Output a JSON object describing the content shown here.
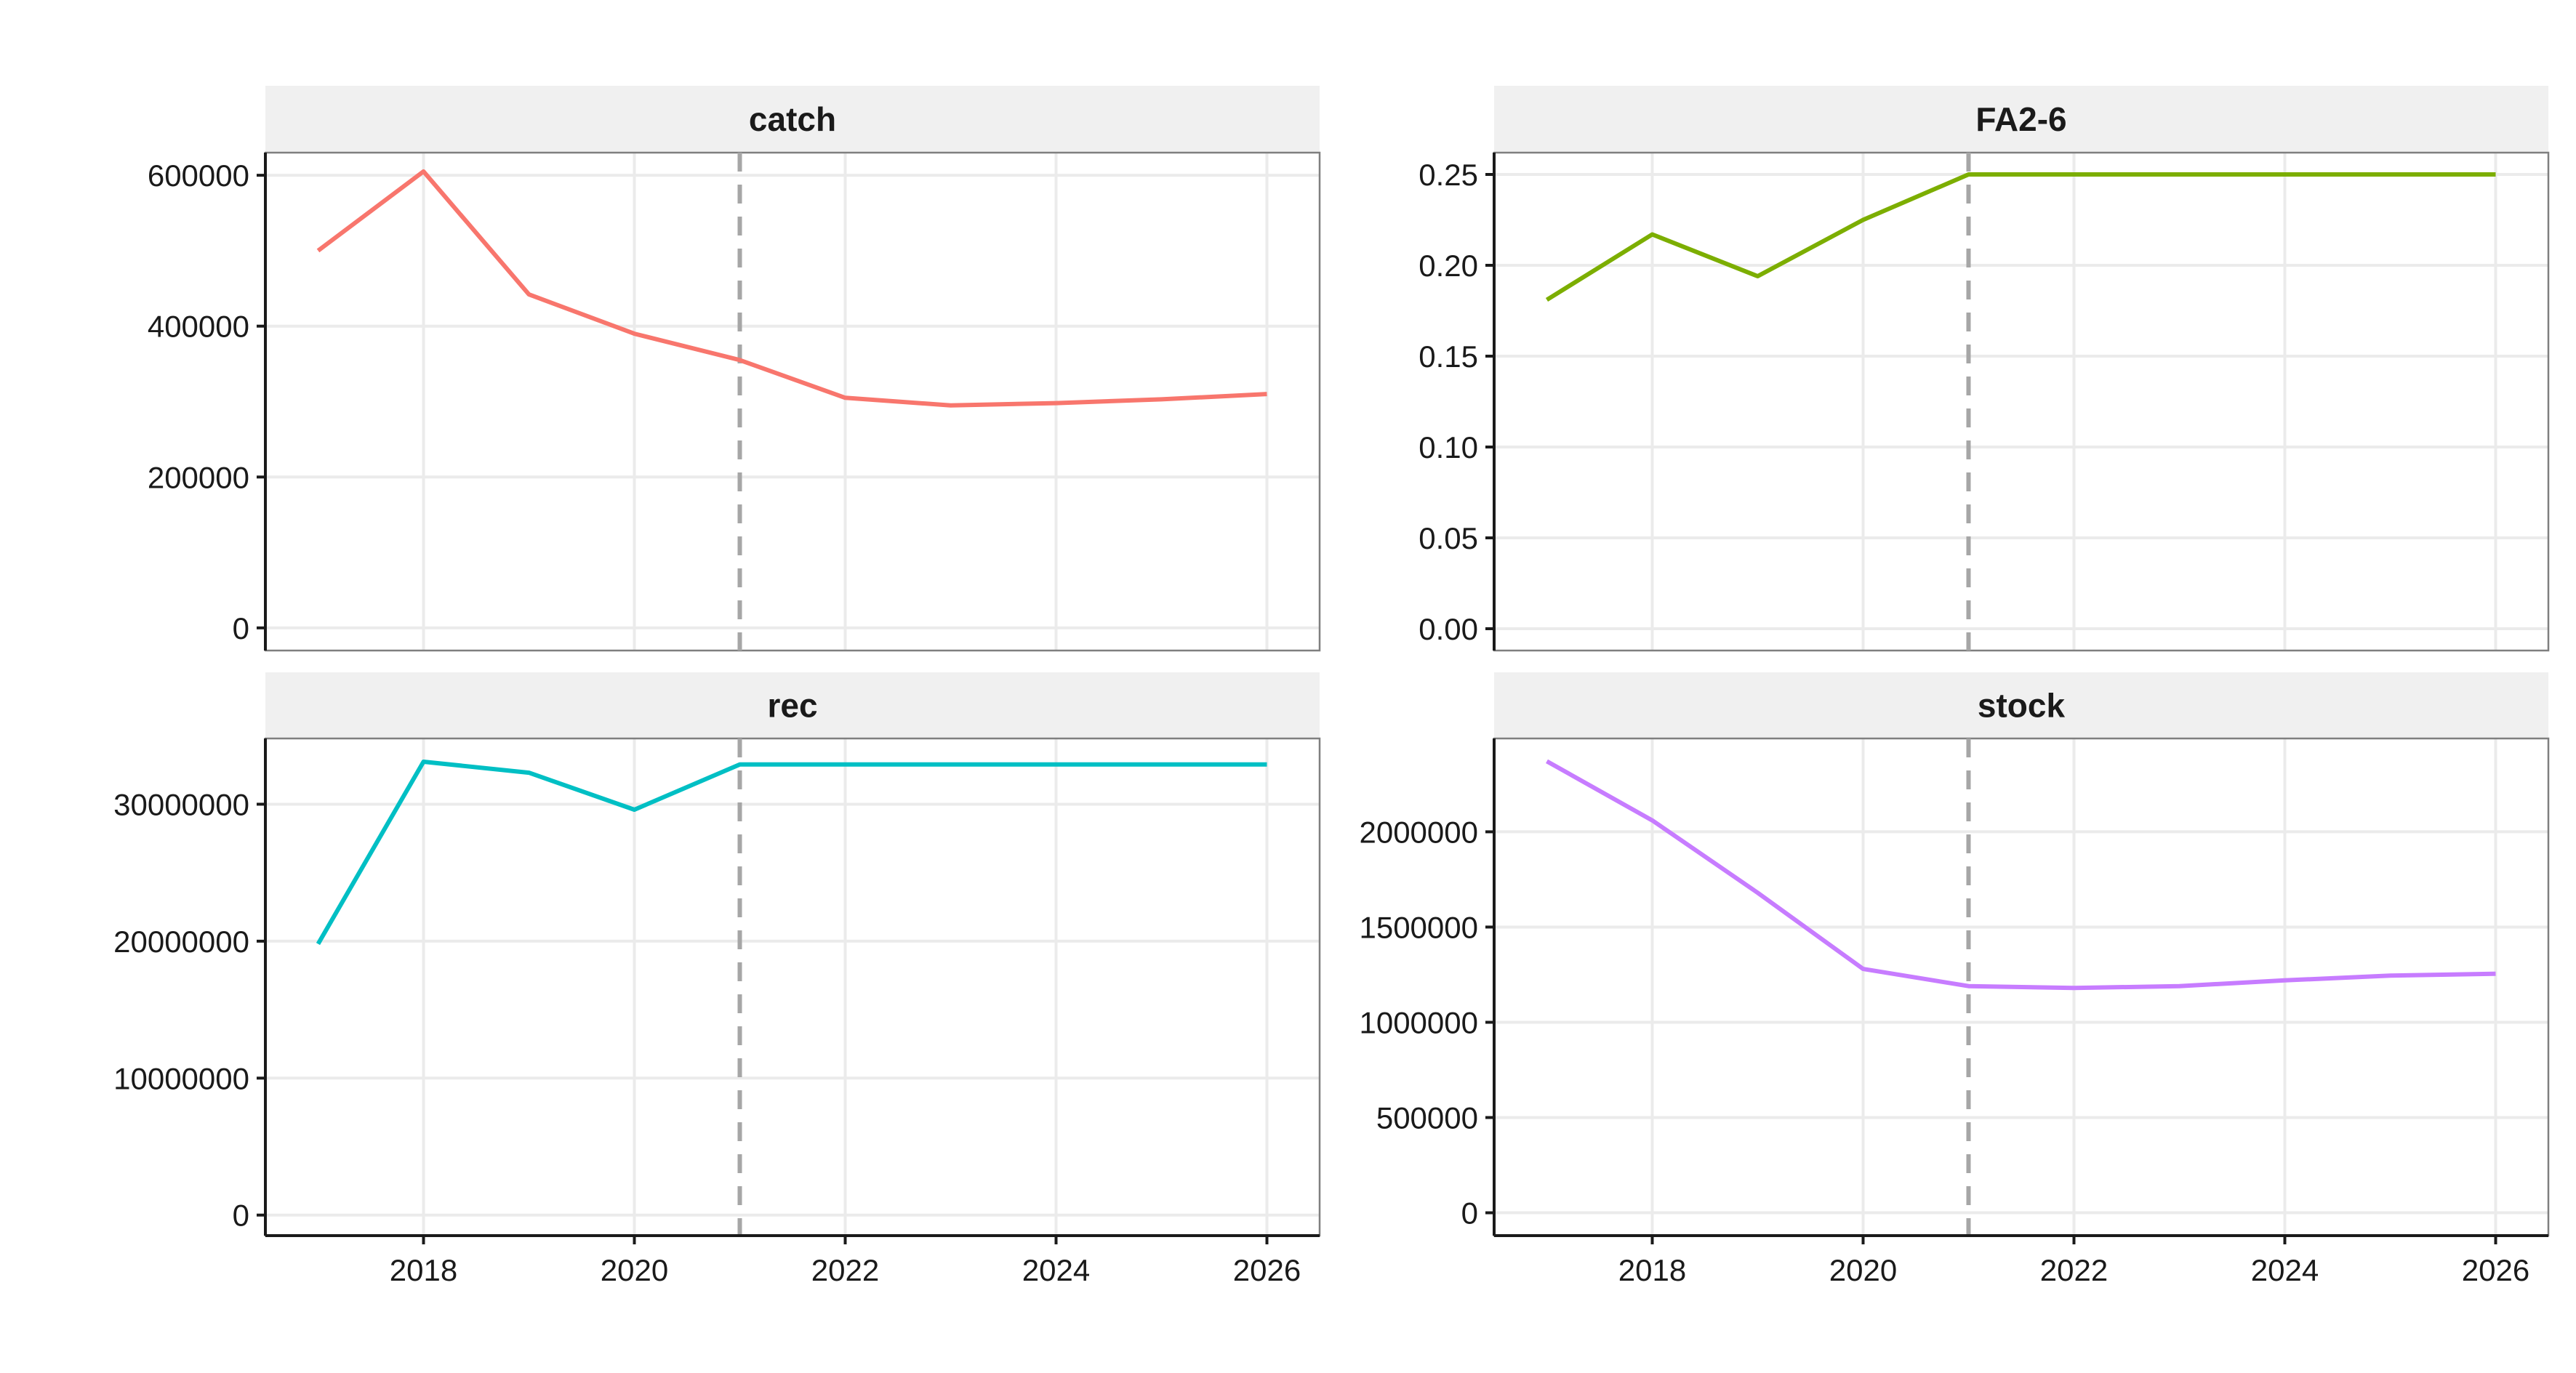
{
  "chart_data": [
    {
      "type": "line",
      "title": "catch",
      "color": "#F8766D",
      "x": [
        2017,
        2018,
        2019,
        2020,
        2021,
        2022,
        2023,
        2024,
        2025,
        2026
      ],
      "values": [
        500000,
        605000,
        442000,
        390000,
        355000,
        305000,
        295000,
        298000,
        303000,
        310000
      ],
      "xlim": [
        2016.5,
        2026.5
      ],
      "ylim": [
        -30000,
        630000
      ],
      "yticks": [
        0,
        200000,
        400000,
        600000
      ],
      "ytick_labels": [
        "0",
        "200000",
        "400000",
        "600000"
      ],
      "reference_x": 2021
    },
    {
      "type": "line",
      "title": "FA2-6",
      "color": "#7CAE00",
      "x": [
        2017,
        2018,
        2019,
        2020,
        2021,
        2022,
        2023,
        2024,
        2025,
        2026
      ],
      "values": [
        0.181,
        0.217,
        0.194,
        0.225,
        0.25,
        0.25,
        0.25,
        0.25,
        0.25,
        0.25
      ],
      "xlim": [
        2016.5,
        2026.5
      ],
      "ylim": [
        -0.012,
        0.262
      ],
      "yticks": [
        0,
        0.05,
        0.1,
        0.15,
        0.2,
        0.25
      ],
      "ytick_labels": [
        "0.00",
        "0.05",
        "0.10",
        "0.15",
        "0.20",
        "0.25"
      ],
      "reference_x": 2021
    },
    {
      "type": "line",
      "title": "rec",
      "color": "#00BFC4",
      "x": [
        2017,
        2018,
        2019,
        2020,
        2021,
        2022,
        2023,
        2024,
        2025,
        2026
      ],
      "values": [
        19800000,
        33100000,
        32300000,
        29600000,
        32900000,
        32900000,
        32900000,
        32900000,
        32900000,
        32900000
      ],
      "xlim": [
        2016.5,
        2026.5
      ],
      "ylim": [
        -1500000,
        34800000
      ],
      "yticks": [
        0,
        10000000,
        20000000,
        30000000
      ],
      "ytick_labels": [
        "0",
        "10000000",
        "20000000",
        "30000000"
      ],
      "xticks": [
        2018,
        2020,
        2022,
        2024,
        2026
      ],
      "xtick_labels": [
        "2018",
        "2020",
        "2022",
        "2024",
        "2026"
      ],
      "reference_x": 2021
    },
    {
      "type": "line",
      "title": "stock",
      "color": "#C77CFF",
      "x": [
        2017,
        2018,
        2019,
        2020,
        2021,
        2022,
        2023,
        2024,
        2025,
        2026
      ],
      "values": [
        2370000,
        2060000,
        1680000,
        1280000,
        1190000,
        1180000,
        1190000,
        1220000,
        1245000,
        1255000
      ],
      "xlim": [
        2016.5,
        2026.5
      ],
      "ylim": [
        -120000,
        2490000
      ],
      "yticks": [
        0,
        500000,
        1000000,
        1500000,
        2000000
      ],
      "ytick_labels": [
        "0",
        "500000",
        "1000000",
        "1500000",
        "2000000"
      ],
      "xticks": [
        2018,
        2020,
        2022,
        2024,
        2026
      ],
      "xtick_labels": [
        "2018",
        "2020",
        "2022",
        "2024",
        "2026"
      ],
      "reference_x": 2021
    }
  ]
}
